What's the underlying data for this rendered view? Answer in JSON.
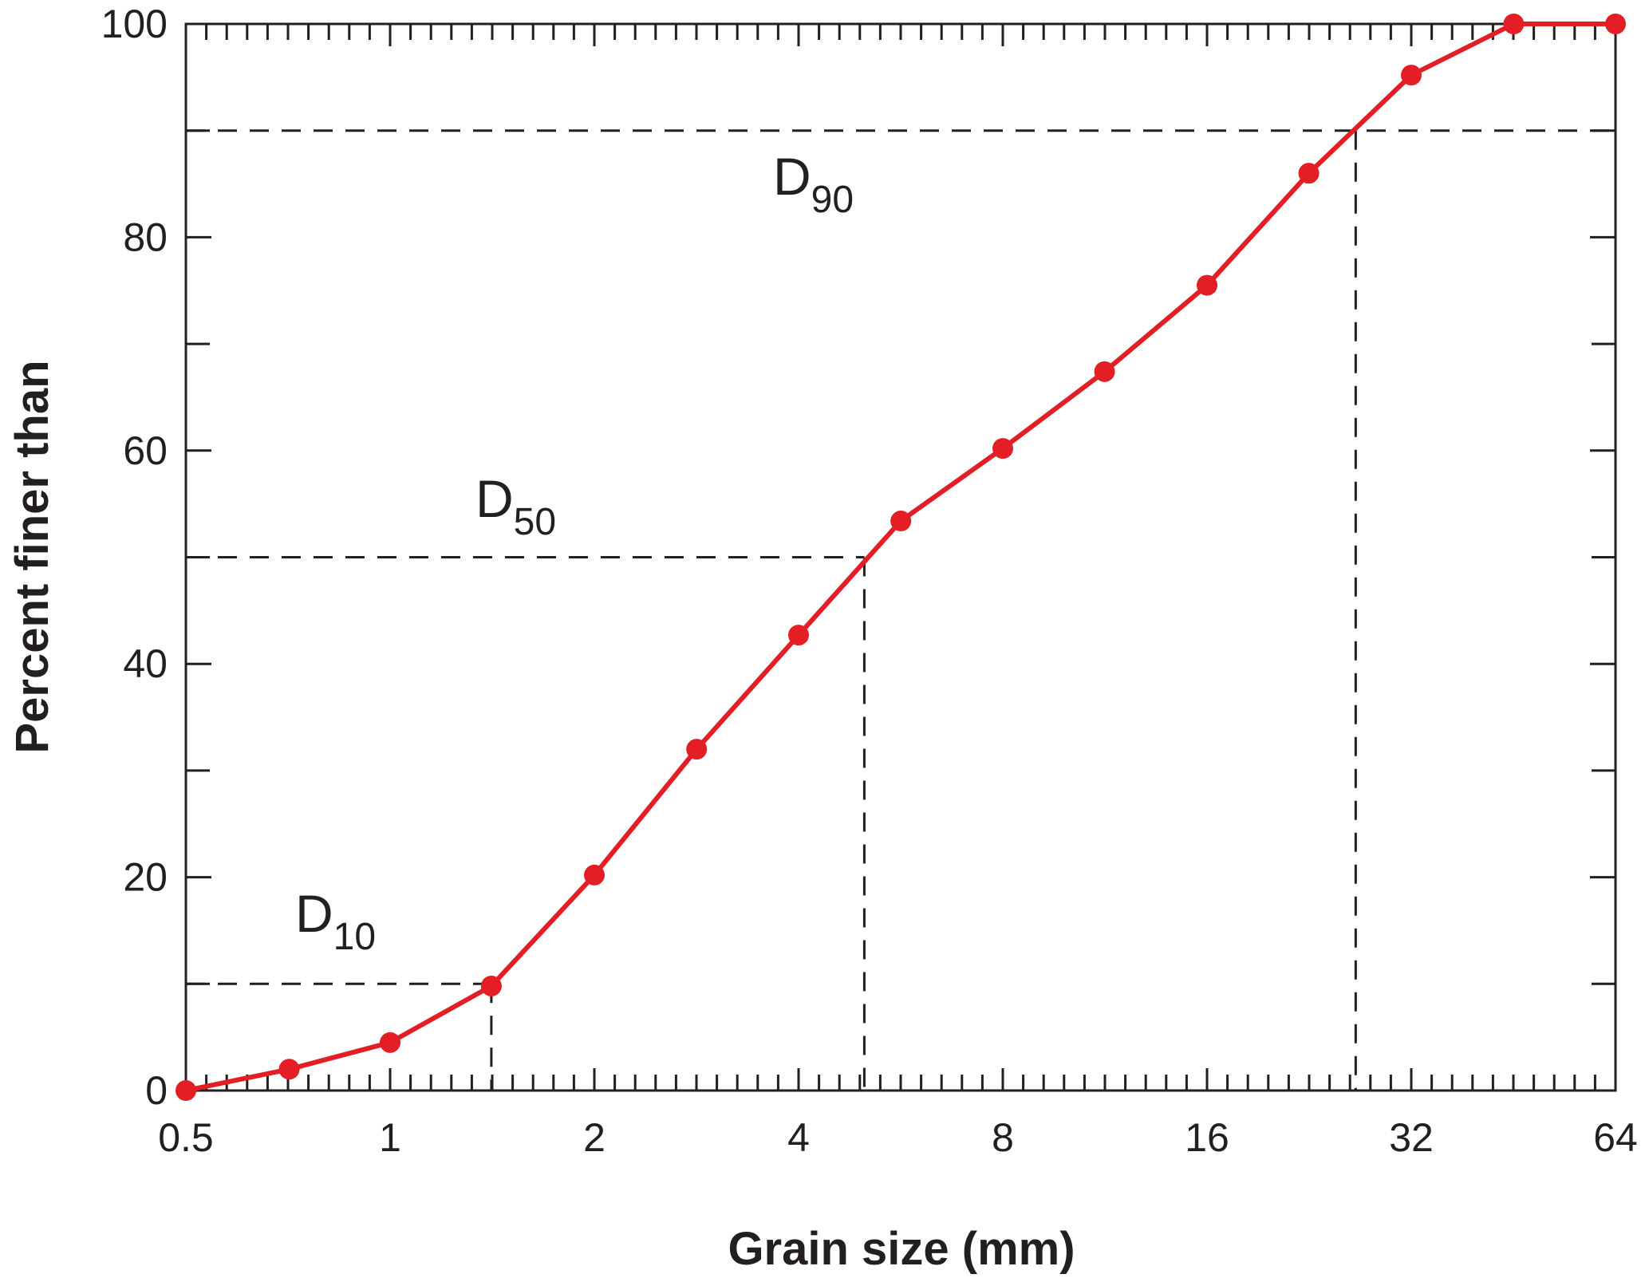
{
  "chart_data": {
    "type": "line",
    "xlabel": "Grain size (mm)",
    "ylabel": "Percent finer than",
    "x_scale": "log2",
    "xlim": [
      0.5,
      64
    ],
    "ylim": [
      0,
      100
    ],
    "x_ticks": [
      0.5,
      1,
      2,
      4,
      8,
      16,
      32,
      64
    ],
    "x_tick_labels": [
      "0.5",
      "1",
      "2",
      "4",
      "8",
      "16",
      "32",
      "64"
    ],
    "y_ticks": [
      0,
      20,
      40,
      60,
      80,
      100
    ],
    "y_tick_labels": [
      "0",
      "20",
      "40",
      "60",
      "80",
      "100"
    ],
    "grid": false,
    "series": [
      {
        "color": "#e31e25",
        "points": [
          {
            "x": 0.5,
            "y": 0
          },
          {
            "x": 0.71,
            "y": 2
          },
          {
            "x": 1.0,
            "y": 4.5
          },
          {
            "x": 1.41,
            "y": 9.8
          },
          {
            "x": 2.0,
            "y": 20.2
          },
          {
            "x": 2.83,
            "y": 32
          },
          {
            "x": 4.0,
            "y": 42.7
          },
          {
            "x": 5.66,
            "y": 53.4
          },
          {
            "x": 8.0,
            "y": 60.2
          },
          {
            "x": 11.3,
            "y": 67.4
          },
          {
            "x": 16.0,
            "y": 75.5
          },
          {
            "x": 22.6,
            "y": 86
          },
          {
            "x": 32.0,
            "y": 95.2
          },
          {
            "x": 45.3,
            "y": 100
          },
          {
            "x": 64.0,
            "y": 100
          }
        ]
      }
    ],
    "annotations": [
      {
        "main": "D",
        "sub": "10",
        "percent": 10,
        "grain_size": 1.41
      },
      {
        "main": "D",
        "sub": "50",
        "percent": 50,
        "grain_size": 5.0
      },
      {
        "main": "D",
        "sub": "90",
        "percent": 90,
        "grain_size": 26.5
      }
    ]
  }
}
